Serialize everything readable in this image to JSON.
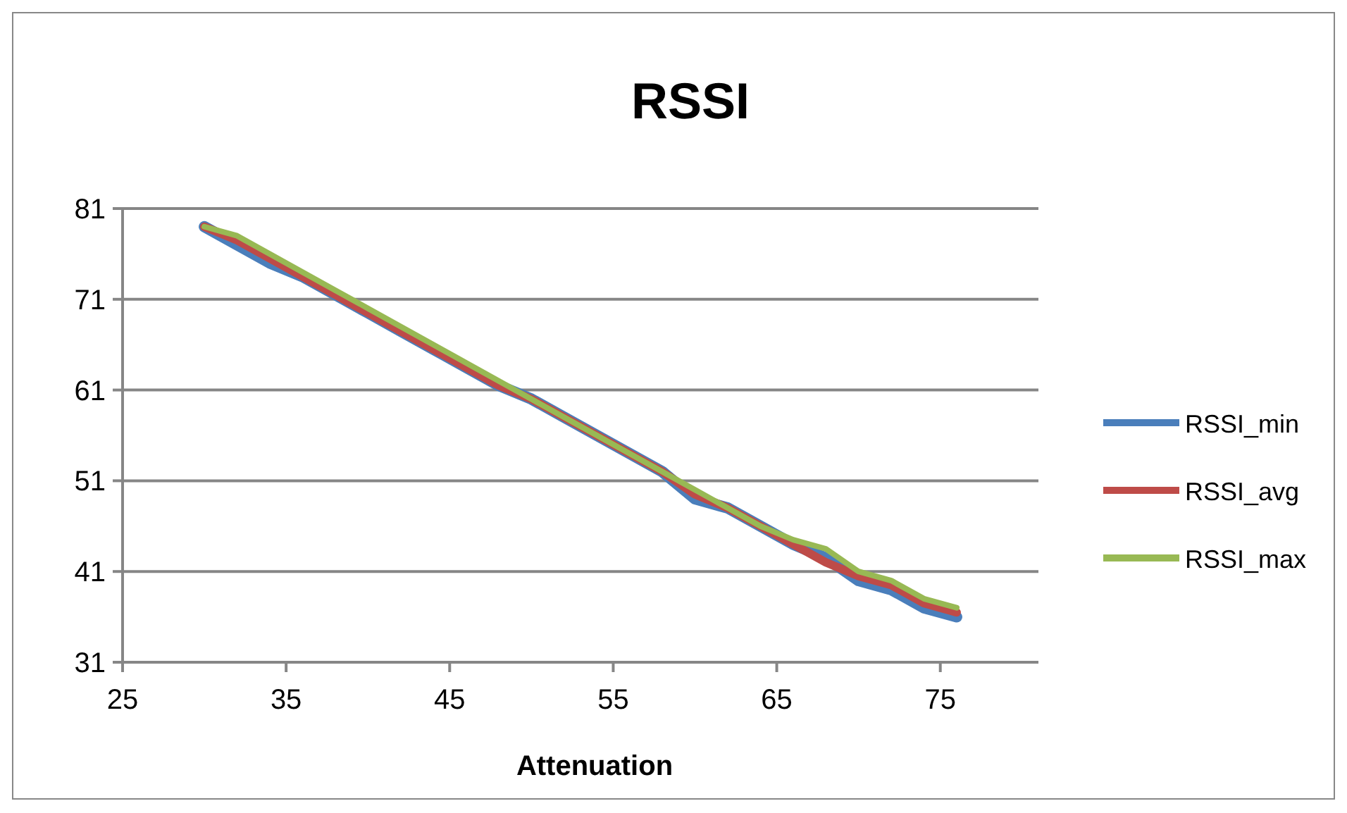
{
  "chart_data": {
    "type": "line",
    "title": "RSSI",
    "xlabel": "Attenuation",
    "x": [
      30,
      32,
      34,
      36,
      38,
      40,
      42,
      44,
      46,
      48,
      50,
      52,
      54,
      56,
      58,
      60,
      62,
      64,
      66,
      68,
      70,
      72,
      74,
      76
    ],
    "series": [
      {
        "name": "RSSI_min",
        "color": "#4a7ebb",
        "values": [
          79,
          77,
          75,
          73.5,
          71.5,
          69.5,
          67.5,
          65.5,
          63.5,
          61.5,
          60,
          58,
          56,
          54,
          52,
          49,
          48,
          46,
          44,
          42.5,
          40,
          39,
          37,
          36
        ]
      },
      {
        "name": "RSSI_avg",
        "color": "#be4b48",
        "values": [
          79,
          77.5,
          75.5,
          73.5,
          71.5,
          69.5,
          67.5,
          65.5,
          63.5,
          61.5,
          60,
          58,
          56,
          54,
          52,
          49.5,
          48,
          46,
          44,
          42,
          40.5,
          39.5,
          37.5,
          36.5
        ]
      },
      {
        "name": "RSSI_max",
        "color": "#98b954",
        "values": [
          79,
          78,
          76,
          74,
          72,
          70,
          68,
          66,
          64,
          62,
          60,
          58,
          56,
          54,
          52,
          50,
          48,
          46,
          44.5,
          43.5,
          41,
          40,
          38,
          37
        ]
      }
    ],
    "xlim": [
      25,
      81
    ],
    "xticks": [
      25,
      35,
      45,
      55,
      65,
      75
    ],
    "ylim": [
      31,
      81
    ],
    "yticks": [
      31,
      41,
      51,
      61,
      71,
      81
    ],
    "grid": "y",
    "legend": "right",
    "marker": "none",
    "line_style": "solid"
  }
}
